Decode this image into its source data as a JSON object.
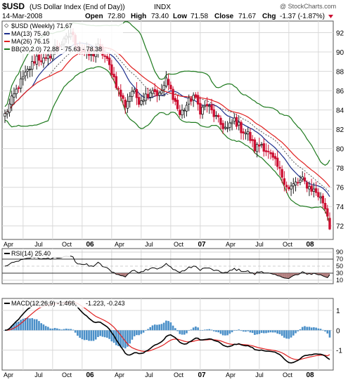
{
  "header": {
    "symbol": "$USD",
    "description": "(US Dollar Index (End of Day))",
    "exchange": "INDX",
    "date": "14-Mar-2008",
    "open_label": "Open",
    "open": "72.80",
    "high_label": "High",
    "high": "73.40",
    "low_label": "Low",
    "low": "71.58",
    "close_label": "Close",
    "close": "71.67",
    "chg_label": "Chg",
    "chg": "-1.37 (-1.87%)",
    "watermark": "@ StockCharts.com"
  },
  "legend": {
    "price": "$USD (Weekly) 71.67",
    "ma13": "MA(13) 75.40",
    "ma26": "MA(26) 76.15",
    "bb": "BB(20,2.0) 72.88 - 75.63 - 78.38",
    "rsi": "RSI(14) 25.40",
    "macd_a": "MACD(12,26,9) -1.466,",
    "macd_b": "-1.223,",
    "macd_c": "-0.243"
  },
  "colors": {
    "up_bar": "#1a1a1a",
    "down_bar": "#cc1133",
    "ma13": "#1d2f8c",
    "ma26": "#e02020",
    "bb": "#1e7a1e",
    "rsi_line": "#000000",
    "rsi_oversold_fill": "#a06060",
    "macd_line": "#000000",
    "signal_line": "#e02020",
    "histogram": "#4a8fc8",
    "arrow": "#cc1133"
  },
  "chart_data": [
    {
      "type": "candlestick",
      "title": "$USD (US Dollar Index (End of Day))",
      "period": "weekly",
      "ylim": [
        70.6,
        93.2
      ],
      "yticks": [
        72,
        74,
        76,
        78,
        80,
        82,
        84,
        86,
        88,
        90,
        92
      ],
      "x_tick_labels": [
        "Apr",
        "Jul",
        "Oct",
        "06",
        "Apr",
        "Jul",
        "Oct",
        "07",
        "Apr",
        "Jul",
        "Oct",
        "08"
      ],
      "series": [
        {
          "name": "$USD (Weekly)",
          "keypoints": [
            [
              0,
              83.5
            ],
            [
              3,
              85
            ],
            [
              6,
              86.5
            ],
            [
              10,
              88
            ],
            [
              14,
              89.5
            ],
            [
              18,
              89
            ],
            [
              22,
              90.5
            ],
            [
              26,
              91
            ],
            [
              29,
              92
            ],
            [
              32,
              90.5
            ],
            [
              35,
              90
            ],
            [
              38,
              89.5
            ],
            [
              41,
              90.5
            ],
            [
              44,
              89.5
            ],
            [
              47,
              88
            ],
            [
              50,
              86
            ],
            [
              53,
              84.5
            ],
            [
              56,
              86
            ],
            [
              59,
              85
            ],
            [
              62,
              85.5
            ],
            [
              65,
              86.2
            ],
            [
              68,
              85.5
            ],
            [
              71,
              87
            ],
            [
              74,
              85.5
            ],
            [
              77,
              83.5
            ],
            [
              80,
              84.5
            ],
            [
              83,
              85.5
            ],
            [
              86,
              84
            ],
            [
              89,
              84.5
            ],
            [
              92,
              83.5
            ],
            [
              95,
              82.5
            ],
            [
              98,
              82
            ],
            [
              101,
              83
            ],
            [
              104,
              82
            ],
            [
              107,
              81.5
            ],
            [
              110,
              80
            ],
            [
              113,
              80.5
            ],
            [
              116,
              79.5
            ],
            [
              119,
              78.5
            ],
            [
              122,
              77.2
            ],
            [
              125,
              75.8
            ],
            [
              128,
              76.4
            ],
            [
              131,
              76.7
            ],
            [
              134,
              76
            ],
            [
              137,
              75.5
            ],
            [
              140,
              74.5
            ],
            [
              142,
              73
            ],
            [
              143,
              71.67
            ]
          ]
        },
        {
          "name": "MA(13)",
          "last": 75.4
        },
        {
          "name": "MA(26)",
          "last": 76.15
        },
        {
          "name": "BB(20,2.0)",
          "last": [
            72.88,
            75.63,
            78.38
          ]
        }
      ]
    },
    {
      "type": "line",
      "title": "RSI(14)",
      "ylim": [
        0,
        100
      ],
      "yticks": [
        10,
        30,
        50,
        70,
        90
      ],
      "reference_lines": [
        30,
        70
      ],
      "series": [
        {
          "name": "RSI(14)",
          "last": 25.4
        }
      ]
    },
    {
      "type": "bar",
      "title": "MACD(12,26,9)",
      "ylim": [
        -2.0,
        1.6
      ],
      "yticks": [
        -1,
        0,
        1
      ],
      "x_tick_labels": [
        "Apr",
        "Jul",
        "Oct",
        "06",
        "Apr",
        "Jul",
        "Oct",
        "07",
        "Apr",
        "Jul",
        "Oct",
        "08"
      ],
      "series": [
        {
          "name": "MACD",
          "last": -1.466
        },
        {
          "name": "Signal",
          "last": -1.223
        },
        {
          "name": "Histogram",
          "last": -0.243
        }
      ]
    }
  ]
}
